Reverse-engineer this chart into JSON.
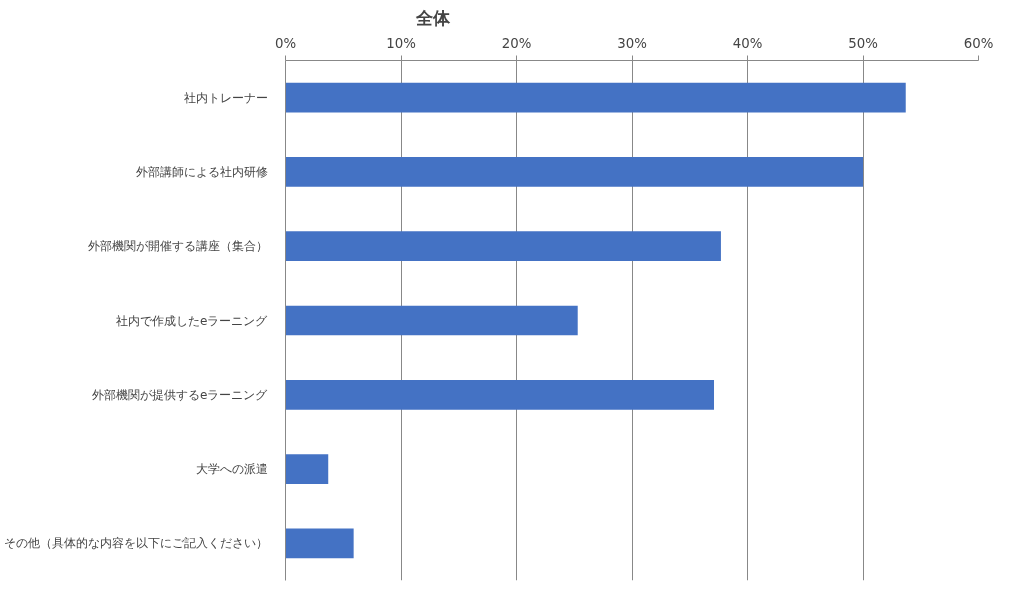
{
  "chart_data": {
    "type": "bar",
    "orientation": "horizontal",
    "title": "全体",
    "categories": [
      "社内トレーナー",
      "外部講師による社内研修",
      "外部機関が開催する講座（集合）",
      "社内で作成したeラーニング",
      "外部機関が提供するeラーニング",
      "大学への派遣",
      "その他（具体的な内容を以下にご記入ください）"
    ],
    "values": [
      53.7,
      50.0,
      37.7,
      25.3,
      37.1,
      3.7,
      5.9
    ],
    "color": "#4472c4",
    "xlim": [
      0,
      60
    ],
    "xticks": [
      {
        "value": 0,
        "label": "0%"
      },
      {
        "value": 10,
        "label": "10%"
      },
      {
        "value": 20,
        "label": "20%"
      },
      {
        "value": 30,
        "label": "30%"
      },
      {
        "value": 40,
        "label": "40%"
      },
      {
        "value": 50,
        "label": "50%"
      },
      {
        "value": 60,
        "label": "60%"
      }
    ],
    "grid": "x"
  }
}
